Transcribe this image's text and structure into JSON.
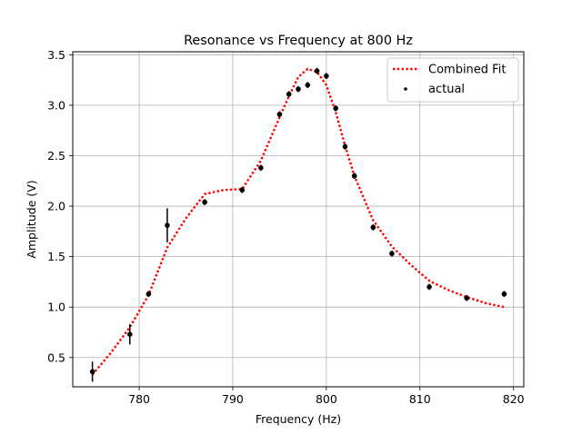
{
  "chart_data": {
    "type": "line",
    "title": "Resonance vs Frequency at 800 Hz",
    "xlabel": "Frequency (Hz)",
    "ylabel": "Amplitude (V)",
    "xlim": [
      772.9,
      821.1
    ],
    "ylim": [
      0.21,
      3.53
    ],
    "xticks": [
      780,
      790,
      800,
      810,
      820
    ],
    "yticks": [
      0.5,
      1.0,
      1.5,
      2.0,
      2.5,
      3.0,
      3.5
    ],
    "xtick_labels": [
      "780",
      "790",
      "800",
      "810",
      "820"
    ],
    "ytick_labels": [
      "0.5",
      "1.0",
      "1.5",
      "2.0",
      "2.5",
      "3.0",
      "3.5"
    ],
    "grid": true,
    "legend_position": "top-right",
    "legend": [
      "Combined Fit",
      "actual"
    ],
    "series": [
      {
        "name": "Combined Fit",
        "style": "dotted-line",
        "color": "#ff0000",
        "x": [
          775,
          777,
          779,
          781,
          783,
          785,
          787,
          789,
          791,
          793,
          795,
          796,
          797,
          798,
          799,
          800,
          801,
          802,
          803,
          805,
          807,
          809,
          811,
          813,
          815,
          817,
          819
        ],
        "y": [
          0.33,
          0.55,
          0.8,
          1.12,
          1.59,
          1.88,
          2.12,
          2.16,
          2.17,
          2.45,
          2.88,
          3.09,
          3.28,
          3.36,
          3.33,
          3.2,
          2.93,
          2.6,
          2.3,
          1.86,
          1.6,
          1.42,
          1.26,
          1.17,
          1.1,
          1.04,
          1.0
        ]
      },
      {
        "name": "actual",
        "style": "markers-with-error-bars",
        "color": "#000000",
        "x": [
          775,
          779,
          781,
          783,
          787,
          791,
          793,
          795,
          796,
          797,
          798,
          799,
          800,
          801,
          802,
          803,
          805,
          807,
          811,
          815,
          819
        ],
        "y": [
          0.36,
          0.73,
          1.13,
          1.81,
          2.04,
          2.16,
          2.38,
          2.91,
          3.11,
          3.16,
          3.2,
          3.34,
          3.29,
          2.97,
          2.59,
          2.3,
          1.79,
          1.53,
          1.2,
          1.09,
          1.13
        ],
        "yerr": [
          0.1,
          0.1,
          0.03,
          0.17,
          0.03,
          0.03,
          0.03,
          0.03,
          0.03,
          0.03,
          0.03,
          0.03,
          0.03,
          0.03,
          0.03,
          0.03,
          0.03,
          0.03,
          0.03,
          0.03,
          0.03
        ]
      }
    ]
  }
}
